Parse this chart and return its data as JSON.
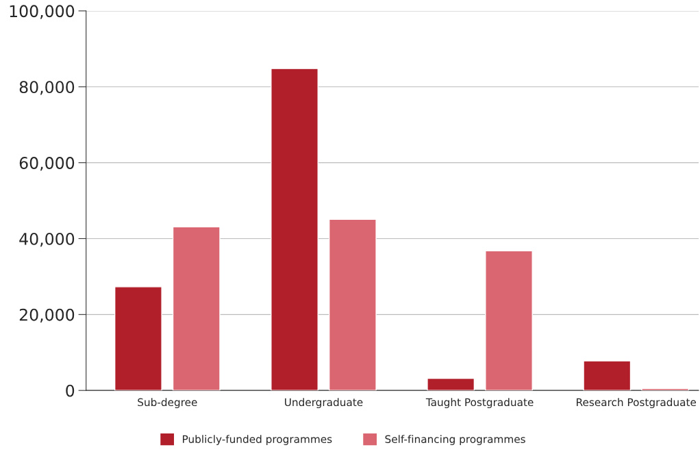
{
  "chart_data": {
    "type": "bar",
    "categories": [
      "Sub-degree",
      "Undergraduate",
      "Taught Postgraduate",
      "Research Postgraduate"
    ],
    "series": [
      {
        "name": "Publicly-funded programmes",
        "color": "#b01f2a",
        "values": [
          27300,
          84800,
          3200,
          7800
        ]
      },
      {
        "name": "Self-financing programmes",
        "color": "#d96670",
        "values": [
          43100,
          45100,
          36800,
          500
        ]
      }
    ],
    "ylim": [
      0,
      100000
    ],
    "yticks": [
      0,
      {
        "value": 20000,
        "label": "20,000"
      },
      {
        "value": 40000,
        "label": "40,000"
      },
      {
        "value": 60000,
        "label": "60,000"
      },
      {
        "value": 80000,
        "label": "80,000"
      },
      {
        "value": 100000,
        "label": "100,000"
      }
    ],
    "grid": "y",
    "legend": "bottom"
  }
}
